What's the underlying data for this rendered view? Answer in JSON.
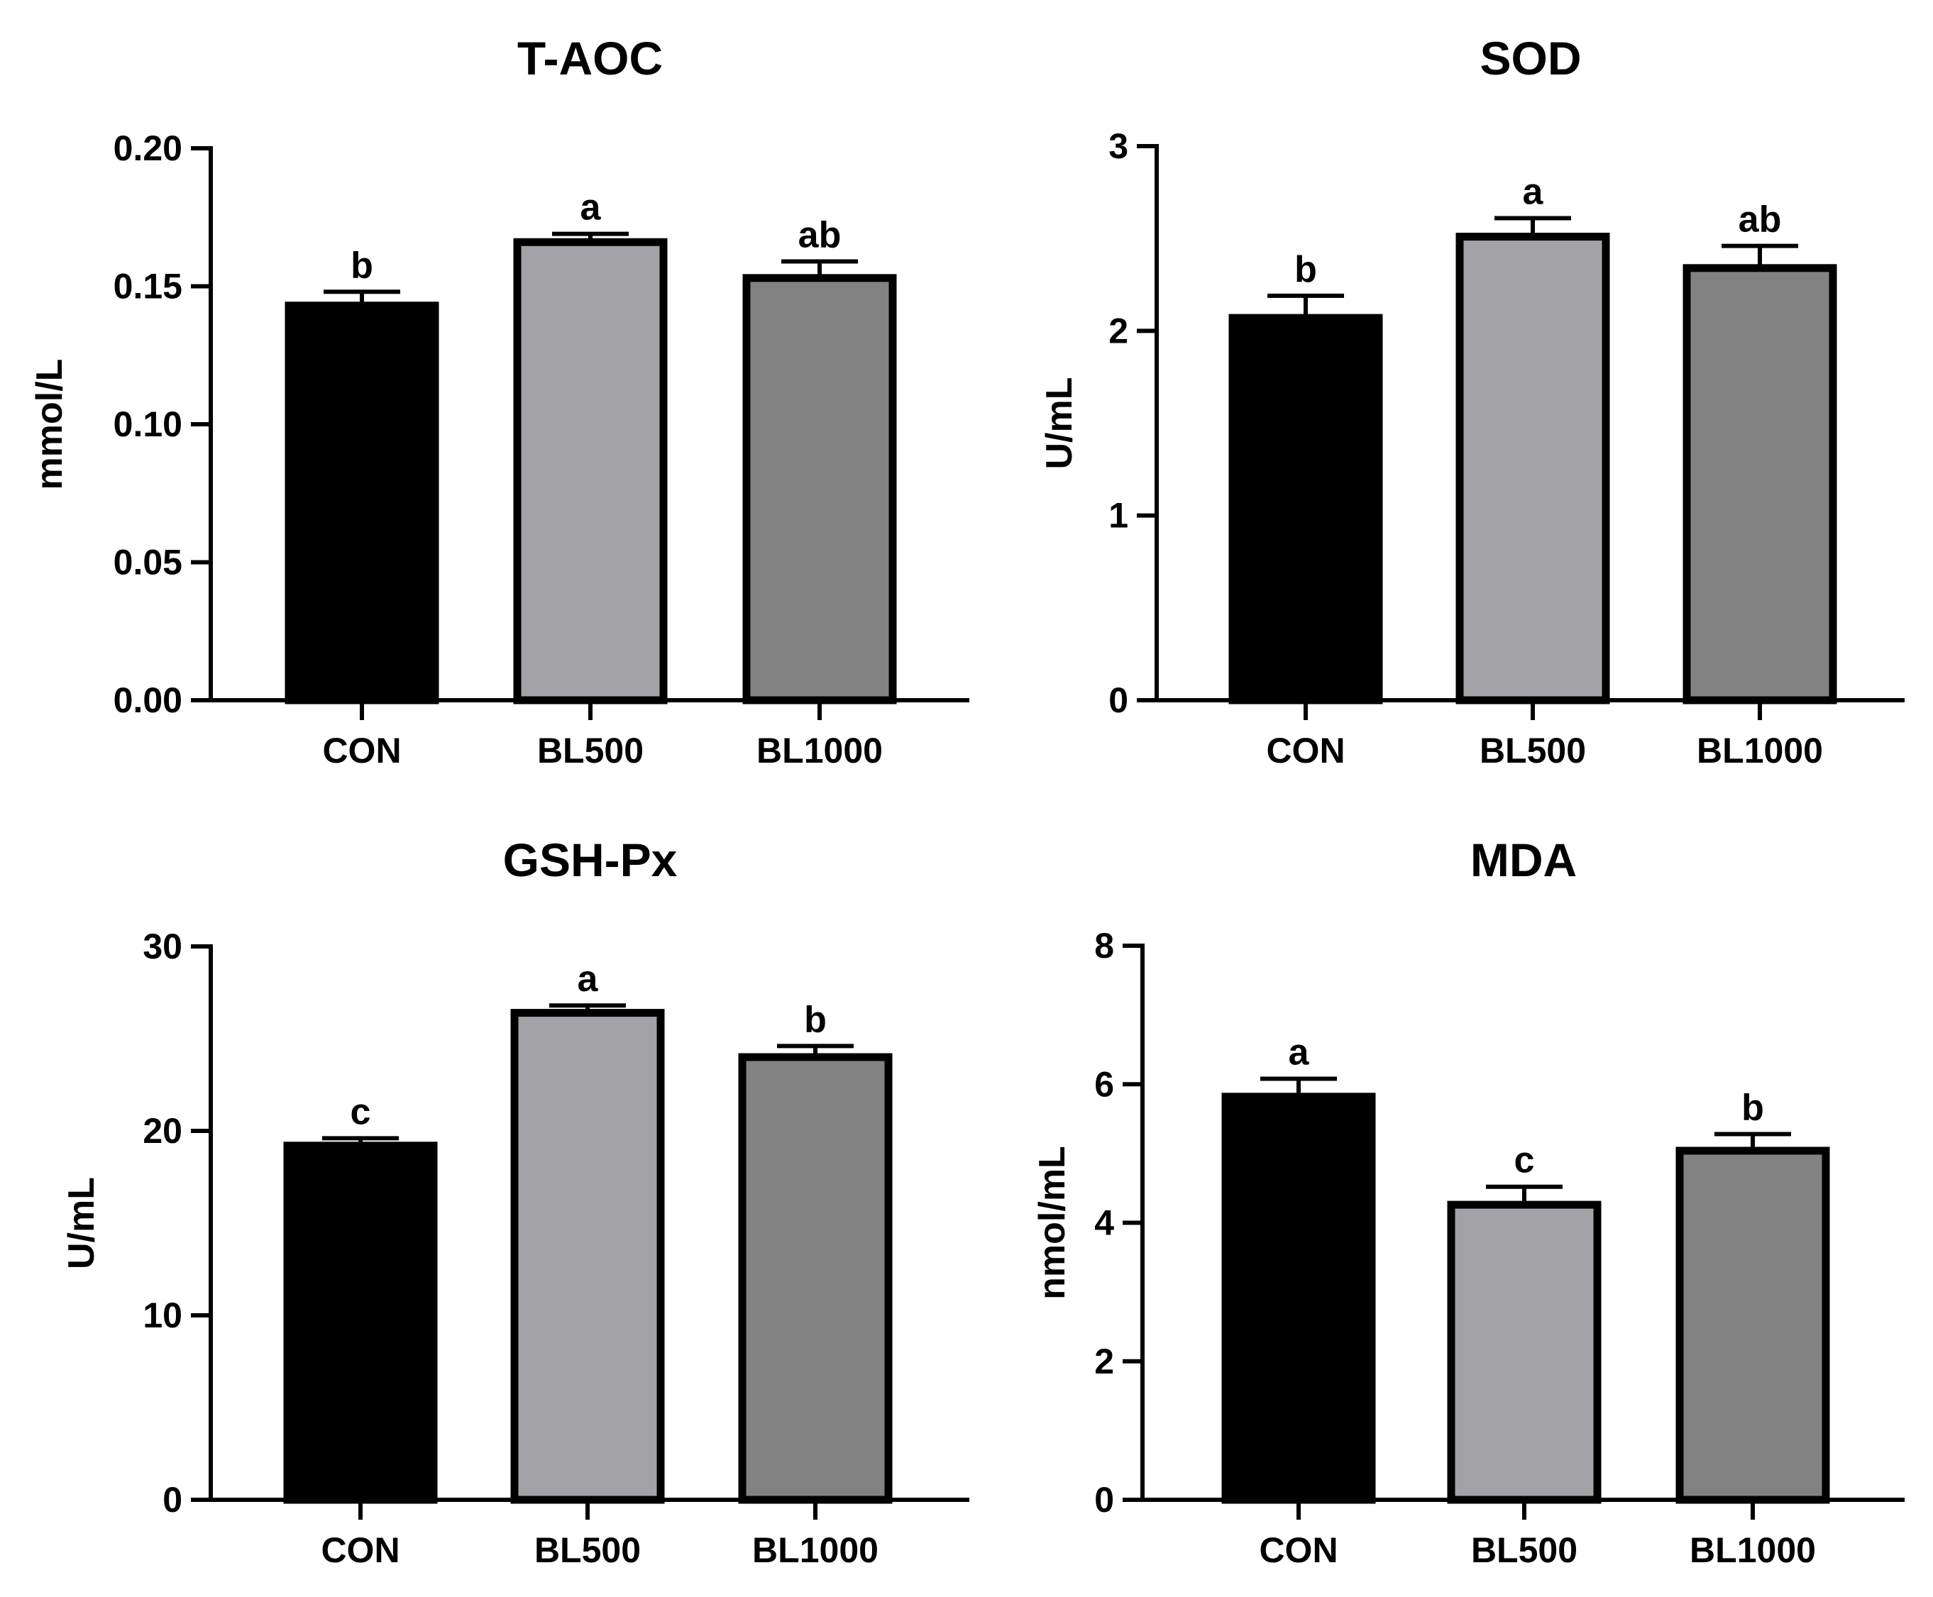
{
  "colors": {
    "CON": "#000000",
    "BL500": "#a3a2a6",
    "BL1000": "#828282",
    "outline": "#000000"
  },
  "chart_data": [
    {
      "type": "bar",
      "title": "T-AOC",
      "xlabel": "",
      "ylabel": "mmol/L",
      "categories": [
        "CON",
        "BL500",
        "BL1000"
      ],
      "values": [
        0.143,
        0.166,
        0.153
      ],
      "errors": [
        0.005,
        0.003,
        0.006
      ],
      "significance": [
        "b",
        "a",
        "ab"
      ],
      "ylim": [
        0,
        0.2
      ],
      "yticks": [
        "0.00",
        "0.05",
        "0.10",
        "0.15",
        "0.20"
      ],
      "ytick_values": [
        0,
        0.05,
        0.1,
        0.15,
        0.2
      ],
      "grid": false,
      "legend": "none"
    },
    {
      "type": "bar",
      "title": "SOD",
      "xlabel": "",
      "ylabel": "U/mL",
      "categories": [
        "CON",
        "BL500",
        "BL1000"
      ],
      "values": [
        2.07,
        2.51,
        2.34
      ],
      "errors": [
        0.12,
        0.1,
        0.12
      ],
      "significance": [
        "b",
        "a",
        "ab"
      ],
      "ylim": [
        0,
        3
      ],
      "yticks": [
        "0",
        "1",
        "2",
        "3"
      ],
      "ytick_values": [
        0,
        1,
        2,
        3
      ],
      "grid": false,
      "legend": "none"
    },
    {
      "type": "bar",
      "title": "GSH-Px",
      "xlabel": "",
      "ylabel": "U/mL",
      "categories": [
        "CON",
        "BL500",
        "BL1000"
      ],
      "values": [
        19.2,
        26.4,
        24.0
      ],
      "errors": [
        0.4,
        0.4,
        0.6
      ],
      "significance": [
        "c",
        "a",
        "b"
      ],
      "ylim": [
        0,
        30
      ],
      "yticks": [
        "0",
        "10",
        "20",
        "30"
      ],
      "ytick_values": [
        0,
        10,
        20,
        30
      ],
      "grid": false,
      "legend": "none"
    },
    {
      "type": "bar",
      "title": "MDA",
      "xlabel": "",
      "ylabel": "nmol/mL",
      "categories": [
        "CON",
        "BL500",
        "BL1000"
      ],
      "values": [
        5.82,
        4.26,
        5.04
      ],
      "errors": [
        0.26,
        0.26,
        0.24
      ],
      "significance": [
        "a",
        "c",
        "b"
      ],
      "ylim": [
        0,
        8
      ],
      "yticks": [
        "0",
        "2",
        "4",
        "6",
        "8"
      ],
      "ytick_values": [
        0,
        2,
        4,
        6,
        8
      ],
      "grid": false,
      "legend": "none"
    }
  ]
}
